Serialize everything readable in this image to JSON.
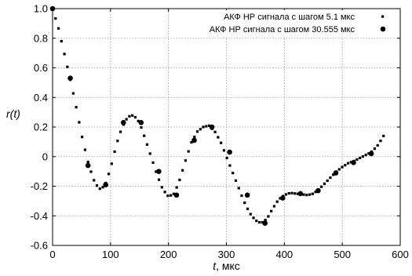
{
  "chart_data": {
    "type": "scatter",
    "xlabel_var": "t",
    "xlabel_unit": ", мкс",
    "ylabel": "r(t)",
    "xlim": [
      0,
      600
    ],
    "ylim": [
      -0.6,
      1.0
    ],
    "xticks": [
      0,
      100,
      200,
      300,
      400,
      500,
      600
    ],
    "yticks": [
      1.0,
      0.8,
      0.6,
      0.4,
      0.2,
      0,
      -0.2,
      -0.4,
      -0.6
    ],
    "xtick_labels": [
      "0",
      "100",
      "200",
      "300",
      "400",
      "500",
      "600"
    ],
    "ytick_labels": [
      "1.0",
      "0.8",
      "0.6",
      "0.4",
      "0.2",
      "0",
      "-0.2",
      "-0.4",
      "-0.6"
    ],
    "grid": true,
    "legend_position": "top-right",
    "series": [
      {
        "name": "АКФ НР сигнала с шагом 5.1 мкс",
        "marker": "small-square",
        "color": "#000000",
        "curve_keypoints_x": [
          0,
          10,
          20,
          30,
          40,
          50,
          60,
          70,
          80,
          90,
          100,
          110,
          120,
          130,
          140,
          150,
          160,
          170,
          180,
          190,
          200,
          210,
          220,
          230,
          240,
          250,
          260,
          270,
          280,
          290,
          300,
          310,
          320,
          330,
          340,
          350,
          360,
          370,
          380,
          390,
          400,
          410,
          420,
          430,
          440,
          450,
          460,
          470,
          480,
          490,
          500,
          510,
          520,
          530,
          540,
          550,
          560,
          570,
          575
        ],
        "curve_keypoints_y": [
          1.0,
          0.87,
          0.7,
          0.53,
          0.35,
          0.15,
          -0.02,
          -0.15,
          -0.22,
          -0.2,
          -0.08,
          0.08,
          0.2,
          0.27,
          0.28,
          0.23,
          0.12,
          0.0,
          -0.12,
          -0.22,
          -0.27,
          -0.25,
          -0.15,
          -0.02,
          0.1,
          0.17,
          0.2,
          0.21,
          0.17,
          0.1,
          0.0,
          -0.1,
          -0.2,
          -0.3,
          -0.38,
          -0.43,
          -0.45,
          -0.42,
          -0.35,
          -0.29,
          -0.26,
          -0.245,
          -0.25,
          -0.255,
          -0.26,
          -0.25,
          -0.22,
          -0.18,
          -0.14,
          -0.1,
          -0.07,
          -0.045,
          -0.03,
          -0.01,
          0.01,
          0.03,
          0.07,
          0.13,
          0.17
        ]
      },
      {
        "name": "АКФ НР сигнала с шагом 30.555 мкс",
        "marker": "large-circle",
        "color": "#000000",
        "x": [
          0,
          30.555,
          61.11,
          91.665,
          122.22,
          152.775,
          183.33,
          213.885,
          244.44,
          274.995,
          305.55,
          336.105,
          366.66,
          397.215,
          427.77,
          458.325,
          488.88,
          519.435,
          549.99
        ],
        "y": [
          1.0,
          0.53,
          -0.06,
          -0.19,
          0.23,
          0.23,
          -0.1,
          -0.26,
          0.11,
          0.2,
          0.03,
          -0.26,
          -0.45,
          -0.28,
          -0.25,
          -0.23,
          -0.11,
          -0.04,
          0.02
        ]
      }
    ]
  }
}
